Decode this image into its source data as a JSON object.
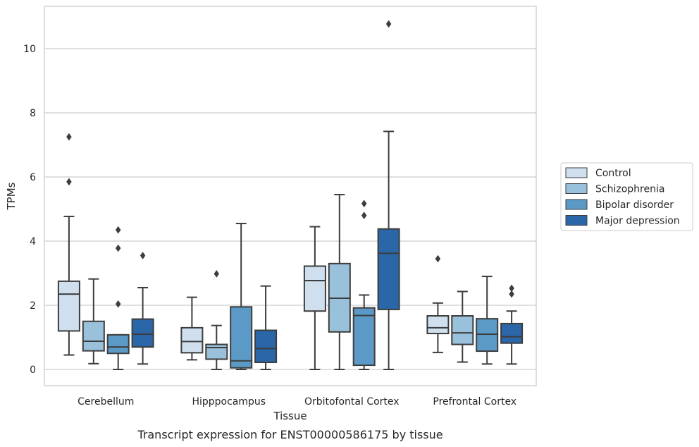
{
  "chart_data": {
    "type": "box",
    "title": "",
    "caption": "Transcript expression for ENST00000586175 by tissue",
    "xlabel": "Tissue",
    "ylabel": "TPMs",
    "ylim": [
      -0.5,
      11.3
    ],
    "yticks": [
      0,
      2,
      4,
      6,
      8,
      10
    ],
    "grid": "horizontal",
    "legend_position": "right",
    "categories": [
      "Cerebellum",
      "Hipppocampus",
      "Orbitofontal Cortex",
      "Prefrontal Cortex"
    ],
    "series": [
      {
        "name": "Control",
        "color": "#cfdfee",
        "boxes": [
          {
            "whisker_low": 0.45,
            "q1": 1.2,
            "median": 2.35,
            "q3": 2.75,
            "whisker_high": 4.77,
            "outliers": [
              5.85,
              7.25
            ]
          },
          {
            "whisker_low": 0.3,
            "q1": 0.52,
            "median": 0.87,
            "q3": 1.3,
            "whisker_high": 2.25,
            "outliers": []
          },
          {
            "whisker_low": 0.0,
            "q1": 1.82,
            "median": 2.77,
            "q3": 3.22,
            "whisker_high": 4.45,
            "outliers": []
          },
          {
            "whisker_low": 0.53,
            "q1": 1.12,
            "median": 1.3,
            "q3": 1.67,
            "whisker_high": 2.07,
            "outliers": [
              3.45
            ]
          }
        ]
      },
      {
        "name": "Schizophrenia",
        "color": "#9ac1db",
        "boxes": [
          {
            "whisker_low": 0.18,
            "q1": 0.58,
            "median": 0.88,
            "q3": 1.5,
            "whisker_high": 2.82,
            "outliers": []
          },
          {
            "whisker_low": 0.0,
            "q1": 0.32,
            "median": 0.68,
            "q3": 0.78,
            "whisker_high": 1.37,
            "outliers": [
              2.98
            ]
          },
          {
            "whisker_low": 0.0,
            "q1": 1.17,
            "median": 2.22,
            "q3": 3.3,
            "whisker_high": 5.45,
            "outliers": []
          },
          {
            "whisker_low": 0.23,
            "q1": 0.78,
            "median": 1.14,
            "q3": 1.67,
            "whisker_high": 2.43,
            "outliers": []
          }
        ]
      },
      {
        "name": "Bipolar disorder",
        "color": "#5b9ac6",
        "boxes": [
          {
            "whisker_low": 0.0,
            "q1": 0.5,
            "median": 0.7,
            "q3": 1.08,
            "whisker_high": 1.08,
            "outliers": [
              2.04,
              3.78,
              4.35
            ]
          },
          {
            "whisker_low": 0.0,
            "q1": 0.05,
            "median": 0.27,
            "q3": 1.95,
            "whisker_high": 4.55,
            "outliers": []
          },
          {
            "whisker_low": 0.0,
            "q1": 0.13,
            "median": 1.68,
            "q3": 1.92,
            "whisker_high": 2.32,
            "outliers": [
              4.8,
              5.17
            ]
          },
          {
            "whisker_low": 0.17,
            "q1": 0.57,
            "median": 1.1,
            "q3": 1.58,
            "whisker_high": 2.9,
            "outliers": []
          }
        ]
      },
      {
        "name": "Major depression",
        "color": "#2a66a8",
        "boxes": [
          {
            "whisker_low": 0.17,
            "q1": 0.7,
            "median": 1.1,
            "q3": 1.57,
            "whisker_high": 2.55,
            "outliers": [
              3.55
            ]
          },
          {
            "whisker_low": 0.0,
            "q1": 0.22,
            "median": 0.65,
            "q3": 1.22,
            "whisker_high": 2.6,
            "outliers": []
          },
          {
            "whisker_low": 0.0,
            "q1": 1.87,
            "median": 3.62,
            "q3": 4.38,
            "whisker_high": 7.42,
            "outliers": [
              10.77
            ]
          },
          {
            "whisker_low": 0.17,
            "q1": 0.82,
            "median": 1.02,
            "q3": 1.43,
            "whisker_high": 1.82,
            "outliers": [
              2.35,
              2.53
            ]
          }
        ]
      }
    ]
  },
  "colors": {
    "grid": "#cccccc",
    "frame": "#cccccc",
    "box_edge": "#3d3d3d",
    "text": "#262626"
  }
}
